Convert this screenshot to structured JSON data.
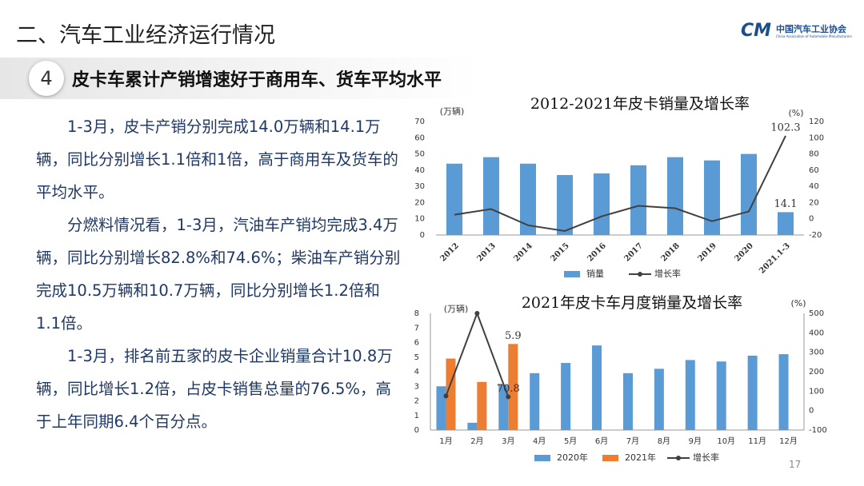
{
  "header": {
    "title": "二、汽车工业经济运行情况",
    "logo_mark": "CM",
    "logo_name": "中国汽车工业协会",
    "logo_english": "China Association of Automobile Manufacturers"
  },
  "section": {
    "number": "4",
    "title": "皮卡车累计产销增速好于商用车、货车平均水平"
  },
  "paragraphs": [
    "1-3月，皮卡产销分别完成14.0万辆和14.1万辆，同比分别增长1.1倍和1倍，高于商用车及货车的平均水平。",
    "分燃料情况看，1-3月，汽油车产销均完成3.4万辆，同比分别增长82.8%和74.6%；柴油车产销分别完成10.5万辆和10.7万辆，同比分别增长1.2倍和1.1倍。",
    "1-3月，排名前五家的皮卡企业销量合计10.8万辆，同比增长1.2倍，占皮卡销售总量的76.5%，高于上年同期6.4个百分点。"
  ],
  "page_number": "17",
  "chart_data": [
    {
      "type": "bar",
      "title": "2012-2021年皮卡销量及增长率",
      "y_label": "(万辆)",
      "y2_label": "(%)",
      "categories": [
        "2012",
        "2013",
        "2014",
        "2015",
        "2016",
        "2017",
        "2018",
        "2019",
        "2020",
        "2021.1-3"
      ],
      "series": [
        {
          "name": "销量",
          "type": "bar",
          "color": "#5b9bd5",
          "values": [
            44,
            48,
            44,
            37,
            38,
            43,
            48,
            46,
            50,
            14.1
          ],
          "value_labels": [
            null,
            null,
            null,
            null,
            null,
            null,
            null,
            null,
            null,
            "14.1"
          ]
        },
        {
          "name": "增长率",
          "type": "line",
          "axis": "y2",
          "color": "#404040",
          "values": [
            5,
            12,
            -8,
            -15,
            3,
            16,
            13,
            -3,
            9,
            102.3
          ],
          "value_labels": [
            null,
            null,
            null,
            null,
            null,
            null,
            null,
            null,
            null,
            "102.3"
          ]
        }
      ],
      "ylim": [
        0,
        70
      ],
      "yticks": [
        0,
        10,
        20,
        30,
        40,
        50,
        60,
        70
      ],
      "y2lim": [
        -20,
        120
      ],
      "y2ticks": [
        -20,
        0,
        20,
        40,
        60,
        80,
        100,
        120
      ],
      "legend": "bottom"
    },
    {
      "type": "bar",
      "title": "2021年皮卡车月度销量及增长率",
      "y_label": "(万辆)",
      "y2_label": "(%)",
      "categories": [
        "1月",
        "2月",
        "3月",
        "4月",
        "5月",
        "6月",
        "7月",
        "8月",
        "9月",
        "10月",
        "11月",
        "12月"
      ],
      "series": [
        {
          "name": "2020年",
          "type": "bar",
          "color": "#5b9bd5",
          "values": [
            3.0,
            0.5,
            3.1,
            3.9,
            4.6,
            5.8,
            3.9,
            4.2,
            4.8,
            4.7,
            5.1,
            5.2
          ]
        },
        {
          "name": "2021年",
          "type": "bar",
          "color": "#ed7d31",
          "values": [
            4.9,
            3.3,
            5.9,
            null,
            null,
            null,
            null,
            null,
            null,
            null,
            null,
            null
          ],
          "value_labels": [
            null,
            null,
            "5.9",
            null,
            null,
            null,
            null,
            null,
            null,
            null,
            null,
            null
          ]
        },
        {
          "name": "增长率",
          "type": "line",
          "axis": "y2",
          "color": "#404040",
          "markers": true,
          "values": [
            75,
            500,
            70.8,
            null,
            null,
            null,
            null,
            null,
            null,
            null,
            null,
            null
          ],
          "value_labels": [
            null,
            null,
            "70.8",
            null,
            null,
            null,
            null,
            null,
            null,
            null,
            null,
            null
          ]
        }
      ],
      "ylim": [
        0,
        8
      ],
      "yticks": [
        0,
        1,
        2,
        3,
        4,
        5,
        6,
        7,
        8
      ],
      "y2lim": [
        -100,
        500
      ],
      "y2ticks": [
        -100,
        0,
        100,
        200,
        300,
        400,
        500
      ],
      "legend": "bottom"
    }
  ]
}
